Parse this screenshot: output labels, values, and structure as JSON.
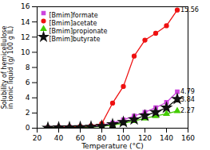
{
  "chart_data": {
    "type": "line",
    "x": [
      30,
      40,
      50,
      60,
      70,
      80,
      90,
      100,
      110,
      120,
      130,
      140,
      150
    ],
    "series": [
      {
        "name": "[Bmim]formate",
        "color": "#cc44dd",
        "marker": "square",
        "values": [
          0.1,
          0.12,
          0.15,
          0.18,
          0.25,
          0.4,
          0.7,
          1.1,
          1.6,
          2.1,
          2.7,
          3.4,
          4.79
        ]
      },
      {
        "name": "[Bmim]acetate",
        "color": "#ee1111",
        "marker": "circle",
        "values": [
          0.1,
          0.13,
          0.18,
          0.22,
          0.3,
          0.6,
          3.3,
          5.5,
          9.5,
          11.6,
          12.5,
          13.5,
          15.56
        ]
      },
      {
        "name": "[Bmim]propionate",
        "color": "#44cc00",
        "marker": "triangle",
        "values": [
          0.05,
          0.08,
          0.1,
          0.12,
          0.15,
          0.25,
          0.4,
          0.65,
          0.95,
          1.3,
          1.6,
          1.9,
          2.27
        ]
      },
      {
        "name": "[Bmim]butyrate",
        "color": "#111111",
        "marker": "star",
        "values": [
          0.05,
          0.08,
          0.1,
          0.13,
          0.18,
          0.28,
          0.5,
          0.8,
          1.15,
          1.65,
          2.1,
          2.7,
          3.84
        ]
      }
    ],
    "annotations": [
      {
        "text": "15.56",
        "x": 150,
        "y": 15.56
      },
      {
        "text": "4.79",
        "x": 150,
        "y": 4.79
      },
      {
        "text": "3.84",
        "x": 150,
        "y": 3.84
      },
      {
        "text": "2.27",
        "x": 150,
        "y": 2.27
      }
    ],
    "xlabel": "Temperature (°C)",
    "ylabel": "Solubility of hemicellulose\nin ionic liquid (g/ 100 g IL)",
    "xlim": [
      20,
      160
    ],
    "ylim": [
      0,
      16
    ],
    "xticks": [
      20,
      40,
      60,
      80,
      100,
      120,
      140,
      160
    ],
    "yticks": [
      0,
      2,
      4,
      6,
      8,
      10,
      12,
      14,
      16
    ],
    "grid": false,
    "legend": "upper left"
  }
}
